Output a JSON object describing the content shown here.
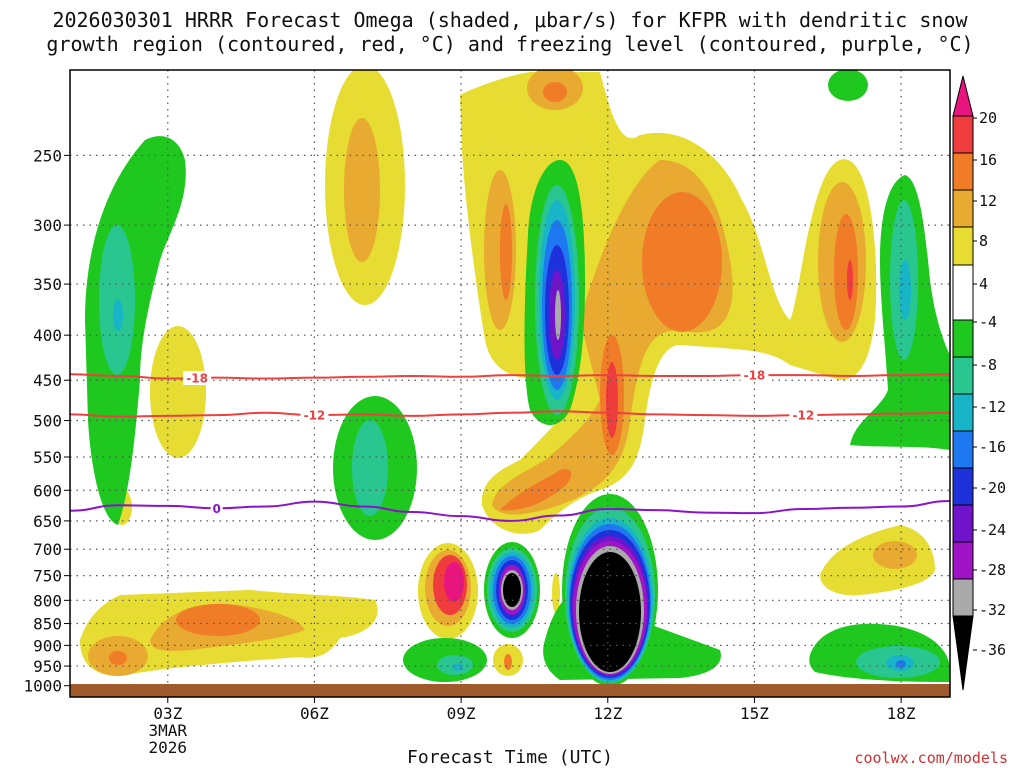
{
  "chart_data": {
    "type": "heatmap",
    "title_line1": "2026030301 HRRR Forecast Omega (shaded, μbar/s) for KFPR with dendritic snow",
    "title_line2": "growth region (contoured, red, °C) and freezing level (contoured, purple, °C)",
    "xlabel": "Forecast Time (UTC)",
    "credit": "coolwx.com/models",
    "x_range_hours": [
      1,
      19
    ],
    "x_ticks": [
      {
        "hour": 3,
        "label": "03Z",
        "sub1": "3MAR",
        "sub2": "2026"
      },
      {
        "hour": 6,
        "label": "06Z"
      },
      {
        "hour": 9,
        "label": "09Z"
      },
      {
        "hour": 12,
        "label": "12Z"
      },
      {
        "hour": 15,
        "label": "15Z"
      },
      {
        "hour": 18,
        "label": "18Z"
      }
    ],
    "y_label_levels": [
      "250",
      "300",
      "350",
      "400",
      "450",
      "500",
      "550",
      "600",
      "650",
      "700",
      "750",
      "800",
      "850",
      "900",
      "950",
      "1000"
    ],
    "y_range_hpa": [
      200,
      1030
    ],
    "colorbar": {
      "labels": [
        "20",
        "16",
        "12",
        "8",
        "4",
        "-4",
        "-8",
        "-12",
        "-16",
        "-20",
        "-24",
        "-28",
        "-32",
        "-36"
      ],
      "colors": {
        "top_arrow": "#e8157e",
        "16_20": "#f03c3c",
        "12_16": "#f07c28",
        "8_12": "#e8aa30",
        "4_8": "#e6dc32",
        "neutral": "#ffffff",
        "m8_m4": "#1ec81e",
        "m12_m8": "#2ac690",
        "m16_m12": "#18b4c8",
        "m20_m16": "#1e78f0",
        "m24_m20": "#1e32dc",
        "m28_m24": "#7014cc",
        "m32_m28": "#a014c8",
        "m36_m32": "#aaaaaa",
        "bottom_arrow": "#000000"
      }
    },
    "contours": [
      {
        "label": "-18",
        "color": "#ee4040",
        "label_hours": [
          3.6,
          15.0
        ],
        "points": [
          [
            1,
            443
          ],
          [
            2,
            445
          ],
          [
            3,
            448
          ],
          [
            4,
            447
          ],
          [
            5,
            448
          ],
          [
            6,
            447
          ],
          [
            7,
            446
          ],
          [
            8,
            445
          ],
          [
            9,
            446
          ],
          [
            10,
            444
          ],
          [
            11,
            445
          ],
          [
            12,
            444
          ],
          [
            13,
            445
          ],
          [
            14,
            445
          ],
          [
            15,
            444
          ],
          [
            16,
            444
          ],
          [
            17,
            445
          ],
          [
            18,
            444
          ],
          [
            19,
            443
          ]
        ]
      },
      {
        "label": "-12",
        "color": "#ee4040",
        "label_hours": [
          6.0,
          16.0
        ],
        "points": [
          [
            1,
            492
          ],
          [
            2,
            495
          ],
          [
            3,
            494
          ],
          [
            4,
            493
          ],
          [
            5,
            490
          ],
          [
            6,
            493
          ],
          [
            7,
            492
          ],
          [
            8,
            494
          ],
          [
            9,
            492
          ],
          [
            10,
            490
          ],
          [
            11,
            488
          ],
          [
            12,
            490
          ],
          [
            13,
            492
          ],
          [
            14,
            493
          ],
          [
            15,
            494
          ],
          [
            16,
            493
          ],
          [
            17,
            492
          ],
          [
            18,
            491
          ],
          [
            19,
            490
          ]
        ]
      },
      {
        "label": "0",
        "color": "#8a14c8",
        "label_hours": [
          4.0
        ],
        "points": [
          [
            1,
            633
          ],
          [
            2,
            624
          ],
          [
            3,
            625
          ],
          [
            4,
            629
          ],
          [
            5,
            626
          ],
          [
            6,
            618
          ],
          [
            7,
            626
          ],
          [
            8,
            635
          ],
          [
            9,
            642
          ],
          [
            10,
            650
          ],
          [
            11,
            641
          ],
          [
            12,
            630
          ],
          [
            13,
            632
          ],
          [
            14,
            636
          ],
          [
            15,
            637
          ],
          [
            16,
            630
          ],
          [
            17,
            628
          ],
          [
            18,
            626
          ],
          [
            19,
            617
          ]
        ]
      }
    ]
  }
}
